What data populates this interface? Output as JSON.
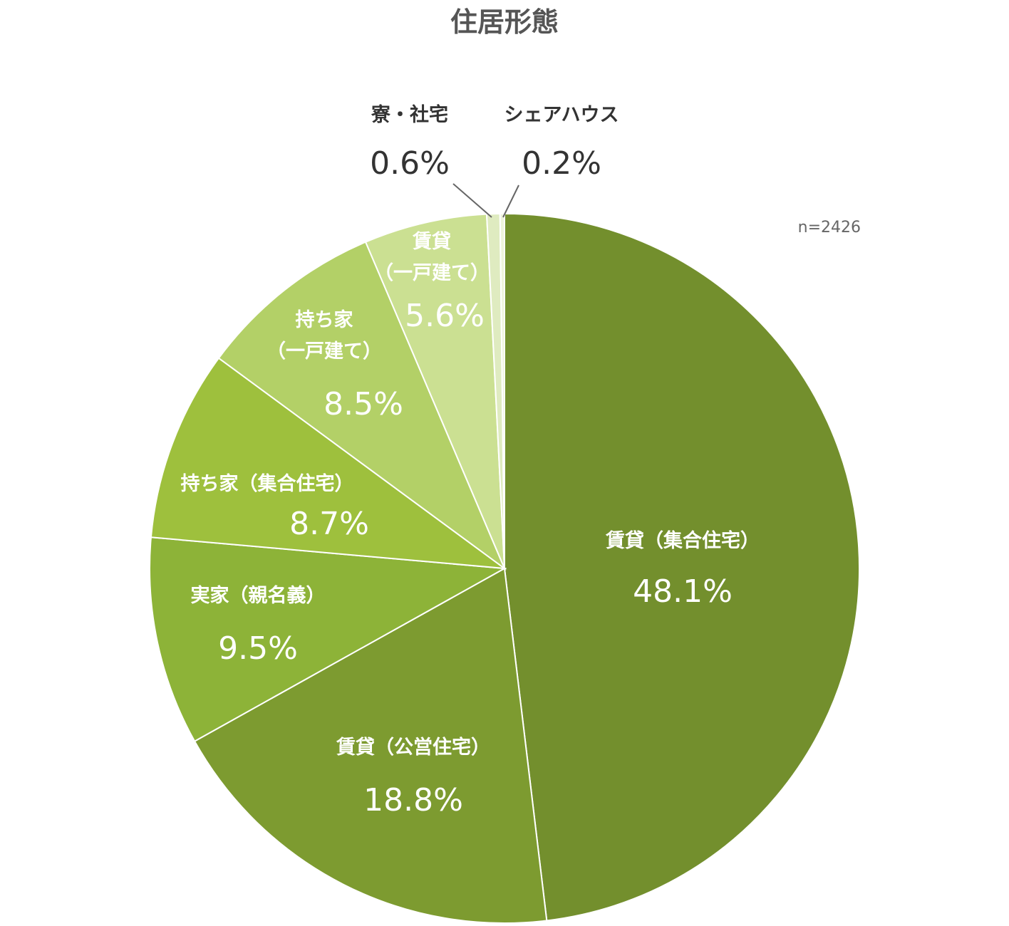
{
  "chart_data": {
    "type": "pie",
    "title": "住居形態",
    "note": "n=2426",
    "slices": [
      {
        "label": "賃貸（集合住宅）",
        "value": 48.1,
        "value_label": "48.1%",
        "color": "#738f2d"
      },
      {
        "label": "賃貸（公営住宅）",
        "value": 18.8,
        "value_label": "18.8%",
        "color": "#7d9b30"
      },
      {
        "label": "実家（親名義）",
        "value": 9.5,
        "value_label": "9.5%",
        "color": "#8db338"
      },
      {
        "label": "持ち家（集合住宅）",
        "value": 8.7,
        "value_label": "8.7%",
        "color": "#9ec03d"
      },
      {
        "label": "持ち家（一戸建て）",
        "value": 8.5,
        "value_label": "8.5%",
        "color": "#b3d067"
      },
      {
        "label": "賃貸（一戸建て）",
        "value": 5.6,
        "value_label": "5.6%",
        "color": "#cbe092"
      },
      {
        "label": "寮・社宅",
        "value": 0.6,
        "value_label": "0.6%",
        "color": "#dfebc0"
      },
      {
        "label": "シェアハウス",
        "value": 0.2,
        "value_label": "0.2%",
        "color": "#eef4dc"
      }
    ]
  }
}
